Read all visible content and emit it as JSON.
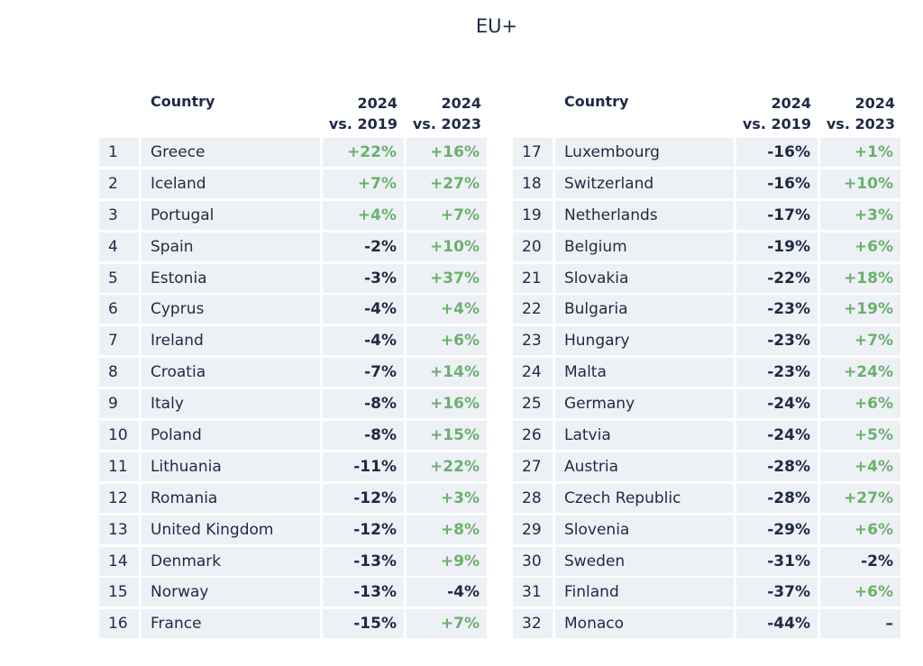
{
  "title": "EU+",
  "headers": {
    "country": "Country",
    "col1_line1": "2024",
    "col1_line2": "vs. 2019",
    "col2_line1": "2024",
    "col2_line2": "vs. 2023"
  },
  "colors": {
    "positive": "#6cb06c",
    "negative": "#1e2a44",
    "cell_bg": "#edf1f6"
  },
  "left_rows": [
    {
      "rank": "1",
      "country": "Greece",
      "vs2019": "+22%",
      "vs2023": "+16%"
    },
    {
      "rank": "2",
      "country": "Iceland",
      "vs2019": "+7%",
      "vs2023": "+27%"
    },
    {
      "rank": "3",
      "country": "Portugal",
      "vs2019": "+4%",
      "vs2023": "+7%"
    },
    {
      "rank": "4",
      "country": "Spain",
      "vs2019": "-2%",
      "vs2023": "+10%"
    },
    {
      "rank": "5",
      "country": "Estonia",
      "vs2019": "-3%",
      "vs2023": "+37%"
    },
    {
      "rank": "6",
      "country": "Cyprus",
      "vs2019": "-4%",
      "vs2023": "+4%"
    },
    {
      "rank": "7",
      "country": "Ireland",
      "vs2019": "-4%",
      "vs2023": "+6%"
    },
    {
      "rank": "8",
      "country": "Croatia",
      "vs2019": "-7%",
      "vs2023": "+14%"
    },
    {
      "rank": "9",
      "country": "Italy",
      "vs2019": "-8%",
      "vs2023": "+16%"
    },
    {
      "rank": "10",
      "country": "Poland",
      "vs2019": "-8%",
      "vs2023": "+15%"
    },
    {
      "rank": "11",
      "country": "Lithuania",
      "vs2019": "-11%",
      "vs2023": "+22%"
    },
    {
      "rank": "12",
      "country": "Romania",
      "vs2019": "-12%",
      "vs2023": "+3%"
    },
    {
      "rank": "13",
      "country": "United Kingdom",
      "vs2019": "-12%",
      "vs2023": "+8%"
    },
    {
      "rank": "14",
      "country": "Denmark",
      "vs2019": "-13%",
      "vs2023": "+9%"
    },
    {
      "rank": "15",
      "country": "Norway",
      "vs2019": "-13%",
      "vs2023": "-4%"
    },
    {
      "rank": "16",
      "country": "France",
      "vs2019": "-15%",
      "vs2023": "+7%"
    }
  ],
  "right_rows": [
    {
      "rank": "17",
      "country": "Luxembourg",
      "vs2019": "-16%",
      "vs2023": "+1%"
    },
    {
      "rank": "18",
      "country": "Switzerland",
      "vs2019": "-16%",
      "vs2023": "+10%"
    },
    {
      "rank": "19",
      "country": "Netherlands",
      "vs2019": "-17%",
      "vs2023": "+3%"
    },
    {
      "rank": "20",
      "country": "Belgium",
      "vs2019": "-19%",
      "vs2023": "+6%"
    },
    {
      "rank": "21",
      "country": "Slovakia",
      "vs2019": "-22%",
      "vs2023": "+18%"
    },
    {
      "rank": "22",
      "country": "Bulgaria",
      "vs2019": "-23%",
      "vs2023": "+19%"
    },
    {
      "rank": "23",
      "country": "Hungary",
      "vs2019": "-23%",
      "vs2023": "+7%"
    },
    {
      "rank": "24",
      "country": "Malta",
      "vs2019": "-23%",
      "vs2023": "+24%"
    },
    {
      "rank": "25",
      "country": "Germany",
      "vs2019": "-24%",
      "vs2023": "+6%"
    },
    {
      "rank": "26",
      "country": "Latvia",
      "vs2019": "-24%",
      "vs2023": "+5%"
    },
    {
      "rank": "27",
      "country": "Austria",
      "vs2019": "-28%",
      "vs2023": "+4%"
    },
    {
      "rank": "28",
      "country": "Czech Republic",
      "vs2019": "-28%",
      "vs2023": "+27%"
    },
    {
      "rank": "29",
      "country": "Slovenia",
      "vs2019": "-29%",
      "vs2023": "+6%"
    },
    {
      "rank": "30",
      "country": "Sweden",
      "vs2019": "-31%",
      "vs2023": "-2%"
    },
    {
      "rank": "31",
      "country": "Finland",
      "vs2019": "-37%",
      "vs2023": "+6%"
    },
    {
      "rank": "32",
      "country": "Monaco",
      "vs2019": "-44%",
      "vs2023": "–"
    }
  ]
}
